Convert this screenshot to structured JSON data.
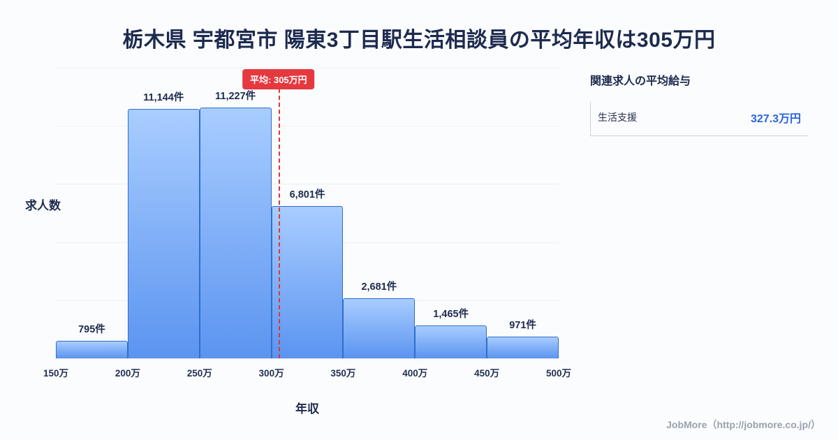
{
  "title": "栃木県 宇都宮市 陽東3丁目駅生活相談員の平均年収は305万円",
  "chart_data": {
    "type": "bar",
    "title": "栃木県 宇都宮市 陽東3丁目駅生活相談員の平均年収は305万円",
    "ylabel": "求人数",
    "xlabel": "年収",
    "bin_edges": [
      150,
      200,
      250,
      300,
      350,
      400,
      450,
      500
    ],
    "x_tick_labels": [
      "150万",
      "200万",
      "250万",
      "300万",
      "350万",
      "400万",
      "450万",
      "500万"
    ],
    "values": [
      795,
      11144,
      11227,
      6801,
      2681,
      1465,
      971
    ],
    "value_labels": [
      "795件",
      "11,144件",
      "11,227件",
      "6,801件",
      "2,681件",
      "1,465件",
      "971件"
    ],
    "ylim": [
      0,
      13000
    ],
    "grid": "horizontal",
    "average": {
      "value": 305,
      "label": "平均: 305万円"
    },
    "colors": {
      "bar_top": "#a9cdff",
      "bar_bottom": "#5b94f0",
      "bar_border": "#2e6fce",
      "average_line": "#e23636",
      "average_badge": "#e5383f"
    }
  },
  "side_panel": {
    "title": "関連求人の平均給与",
    "accent_color": "#2766e0",
    "rows": [
      {
        "label": "生活支援",
        "value": "327.3万円"
      }
    ]
  },
  "footer": {
    "credit": "JobMore（http://jobmore.co.jp/）"
  }
}
